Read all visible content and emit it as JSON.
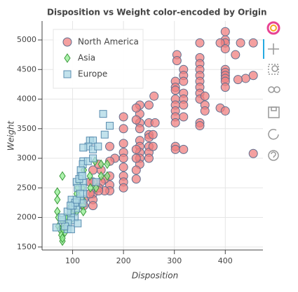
{
  "chart_data": {
    "type": "scatter",
    "title": "Disposition vs Weight color-encoded by Origin",
    "x_label": "Disposition",
    "y_label": "Weight",
    "xlim": [
      40,
      474
    ],
    "ylim": [
      1450,
      5320
    ],
    "xticks": [
      100,
      200,
      300,
      400
    ],
    "yticks": [
      1500,
      2000,
      2500,
      3000,
      3500,
      4000,
      4500,
      5000
    ],
    "grid": true,
    "legend_position": "top-left",
    "series": [
      {
        "name": "North America",
        "marker": "circle",
        "color": "#f08080",
        "x": [
          400,
          400,
          400,
          350,
          390,
          430,
          455,
          420,
          400,
          305,
          305,
          350,
          350,
          400,
          400,
          400,
          400,
          400,
          400,
          440,
          455,
          425,
          318,
          318,
          318,
          302,
          302,
          350,
          350,
          350,
          350,
          350,
          350,
          360,
          360,
          360,
          302,
          302,
          302,
          318,
          318,
          318,
          318,
          350,
          350,
          302,
          302,
          302,
          390,
          400,
          455,
          302,
          302,
          318,
          260,
          250,
          250,
          250,
          232,
          232,
          232,
          232,
          232,
          232,
          232,
          232,
          232,
          250,
          250,
          250,
          250,
          258,
          258,
          262,
          225,
          225,
          200,
          200,
          200,
          200,
          200,
          200,
          200,
          200,
          200,
          225,
          225,
          225,
          225,
          183,
          173,
          173,
          173,
          173,
          173,
          163,
          163,
          156,
          156,
          140,
          140,
          140,
          140,
          140,
          151,
          151,
          151,
          134,
          134,
          122,
          122,
          115,
          98,
          98,
          97
        ],
        "values": [
          5140,
          5000,
          4950,
          4950,
          4950,
          4950,
          4950,
          4750,
          4850,
          4750,
          4650,
          4700,
          4600,
          4500,
          4450,
          4400,
          4350,
          4300,
          4200,
          4350,
          4400,
          4330,
          4500,
          4400,
          4300,
          4300,
          4200,
          4500,
          4400,
          4300,
          4200,
          4100,
          4000,
          4050,
          3900,
          3800,
          4150,
          4000,
          3900,
          4100,
          4000,
          3900,
          3700,
          3600,
          3550,
          3800,
          3700,
          3600,
          3850,
          3800,
          3080,
          3200,
          3150,
          3150,
          4050,
          3900,
          3600,
          3400,
          3900,
          3750,
          3600,
          3500,
          3300,
          3200,
          3100,
          3000,
          2900,
          3350,
          3200,
          3100,
          3000,
          3200,
          3400,
          3600,
          3850,
          3650,
          3700,
          3500,
          3250,
          3100,
          3000,
          2850,
          2700,
          2600,
          2500,
          3150,
          3000,
          2800,
          2650,
          3000,
          3200,
          2950,
          2700,
          2550,
          2450,
          2650,
          2450,
          2800,
          2600,
          2800,
          2600,
          2400,
          2300,
          2200,
          2900,
          2500,
          2450,
          2600,
          2400,
          2300,
          2200,
          2300,
          2130,
          2100,
          2050
        ]
      },
      {
        "name": "Asia",
        "marker": "diamond",
        "color": "#90ee90",
        "x": [
          80,
          70,
          70,
          70,
          72,
          72,
          75,
          78,
          80,
          80,
          85,
          86,
          90,
          91,
          97,
          97,
          98,
          107,
          108,
          110,
          112,
          113,
          119,
          120,
          120,
          121,
          122,
          134,
          135,
          144,
          146,
          156,
          168,
          168,
          156,
          97,
          91,
          86,
          79,
          81,
          90,
          98,
          107,
          108
        ],
        "values": [
          2700,
          2430,
          2300,
          2100,
          2000,
          1850,
          1800,
          1700,
          1600,
          1650,
          1750,
          1850,
          1950,
          2000,
          2200,
          2100,
          2050,
          2300,
          2400,
          2500,
          2600,
          2350,
          2500,
          2300,
          2200,
          2100,
          2800,
          2700,
          2500,
          2950,
          2500,
          2900,
          2900,
          2700,
          2700,
          2000,
          1900,
          2000,
          1950,
          1800,
          1850,
          1980,
          2210,
          2100
        ]
      },
      {
        "name": "Europe",
        "marker": "square",
        "color": "#add8e6",
        "x": [
          160,
          173,
          163,
          134,
          140,
          131,
          121,
          140,
          150,
          121,
          120,
          116,
          116,
          121,
          120,
          121,
          115,
          108,
          108,
          107,
          104,
          97,
          97,
          97,
          91,
          90,
          85,
          79,
          79,
          90,
          98,
          100,
          130,
          110,
          113,
          119,
          146,
          105,
          68,
          97,
          96,
          120,
          108,
          140,
          110,
          115
        ],
        "values": [
          3750,
          3550,
          3400,
          3300,
          3300,
          3200,
          3180,
          3150,
          3200,
          2950,
          2900,
          2800,
          2700,
          2600,
          2500,
          2400,
          2300,
          2600,
          2200,
          2150,
          2000,
          2100,
          2000,
          1950,
          1900,
          1800,
          1850,
          1960,
          2000,
          2100,
          2300,
          2200,
          2950,
          2500,
          2650,
          2700,
          2600,
          2250,
          1830,
          1800,
          2200,
          2240,
          2300,
          3000,
          1900,
          2400
        ]
      }
    ]
  }
}
